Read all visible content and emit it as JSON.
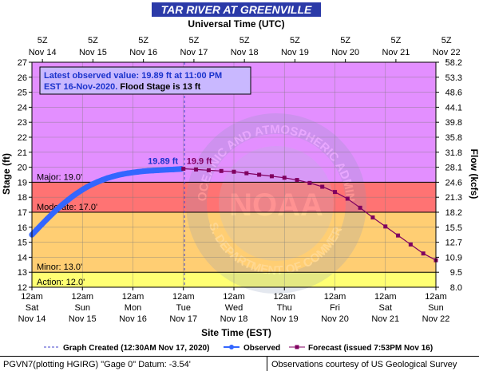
{
  "chart_data": {
    "type": "line",
    "title": "TAR RIVER AT GREENVILLE",
    "top_axis_label": "Universal Time (UTC)",
    "bottom_axis_label": "Site Time (EST)",
    "ylabel_left": "Stage (ft)",
    "ylabel_right": "Flow (kcfs)",
    "ylim": [
      12,
      27
    ],
    "yticks_left": [
      "12",
      "13",
      "14",
      "15",
      "16",
      "17",
      "18",
      "19",
      "20",
      "21",
      "22",
      "23",
      "24",
      "25",
      "26",
      "27"
    ],
    "yticks_right": [
      "8.0",
      "9.5",
      "10.9",
      "12.7",
      "15.5",
      "18.2",
      "21.3",
      "24.6",
      "28.1",
      "31.8",
      "35.8",
      "39.8",
      "44.1",
      "48.6",
      "53.3",
      "58.2"
    ],
    "xlim_days": [
      14,
      22
    ],
    "top_ticks": [
      {
        "t": 14.208,
        "line1": "5Z",
        "line2": "Nov 14"
      },
      {
        "t": 15.208,
        "line1": "5Z",
        "line2": "Nov 15"
      },
      {
        "t": 16.208,
        "line1": "5Z",
        "line2": "Nov 16"
      },
      {
        "t": 17.208,
        "line1": "5Z",
        "line2": "Nov 17"
      },
      {
        "t": 18.208,
        "line1": "5Z",
        "line2": "Nov 18"
      },
      {
        "t": 19.208,
        "line1": "5Z",
        "line2": "Nov 19"
      },
      {
        "t": 20.208,
        "line1": "5Z",
        "line2": "Nov 20"
      },
      {
        "t": 21.208,
        "line1": "5Z",
        "line2": "Nov 21"
      },
      {
        "t": 22.208,
        "line1": "5Z",
        "line2": "Nov 22"
      }
    ],
    "bottom_ticks": [
      {
        "t": 14,
        "line1": "12am",
        "line2": "Sat",
        "line3": "Nov 14"
      },
      {
        "t": 15,
        "line1": "12am",
        "line2": "Sun",
        "line3": "Nov 15"
      },
      {
        "t": 16,
        "line1": "12am",
        "line2": "Mon",
        "line3": "Nov 16"
      },
      {
        "t": 17,
        "line1": "12am",
        "line2": "Tue",
        "line3": "Nov 17"
      },
      {
        "t": 18,
        "line1": "12am",
        "line2": "Wed",
        "line3": "Nov 18"
      },
      {
        "t": 19,
        "line1": "12am",
        "line2": "Thu",
        "line3": "Nov 19"
      },
      {
        "t": 20,
        "line1": "12am",
        "line2": "Fri",
        "line3": "Nov 20"
      },
      {
        "t": 21,
        "line1": "12am",
        "line2": "Sat",
        "line3": "Nov 21"
      },
      {
        "t": 22,
        "line1": "12am",
        "line2": "Sun",
        "line3": "Nov 22"
      }
    ],
    "flood_categories": [
      {
        "name": "Action: 12.0'",
        "from": 12,
        "to": 13,
        "color": "#ffff00"
      },
      {
        "name": "Minor: 13.0'",
        "from": 13,
        "to": 17,
        "color": "#ffa500"
      },
      {
        "name": "Moderate: 17.0'",
        "from": 17,
        "to": 19,
        "color": "#ff0000"
      },
      {
        "name": "Major: 19.0'",
        "from": 19,
        "to": 27,
        "color": "#cc33ff"
      }
    ],
    "graph_created_t": 17.021,
    "series": [
      {
        "name": "Observed",
        "color": "#3366ff",
        "points": [
          [
            14.0,
            15.5
          ],
          [
            14.1,
            15.85
          ],
          [
            14.2,
            16.2
          ],
          [
            14.3,
            16.55
          ],
          [
            14.4,
            16.88
          ],
          [
            14.5,
            17.2
          ],
          [
            14.6,
            17.5
          ],
          [
            14.7,
            17.78
          ],
          [
            14.8,
            18.04
          ],
          [
            14.9,
            18.28
          ],
          [
            15.0,
            18.5
          ],
          [
            15.1,
            18.7
          ],
          [
            15.2,
            18.87
          ],
          [
            15.3,
            19.02
          ],
          [
            15.4,
            19.16
          ],
          [
            15.5,
            19.28
          ],
          [
            15.6,
            19.38
          ],
          [
            15.7,
            19.47
          ],
          [
            15.8,
            19.54
          ],
          [
            15.9,
            19.6
          ],
          [
            16.0,
            19.65
          ],
          [
            16.1,
            19.69
          ],
          [
            16.2,
            19.73
          ],
          [
            16.3,
            19.76
          ],
          [
            16.4,
            19.78
          ],
          [
            16.5,
            19.8
          ],
          [
            16.6,
            19.82
          ],
          [
            16.7,
            19.84
          ],
          [
            16.8,
            19.85
          ],
          [
            16.9,
            19.87
          ],
          [
            16.958,
            19.89
          ]
        ]
      },
      {
        "name": "Forecast (issued 7:53PM Nov 16)",
        "color": "#800060",
        "points": [
          [
            17.0,
            19.9
          ],
          [
            17.25,
            19.85
          ],
          [
            17.5,
            19.8
          ],
          [
            17.75,
            19.75
          ],
          [
            18.0,
            19.7
          ],
          [
            18.25,
            19.6
          ],
          [
            18.5,
            19.5
          ],
          [
            18.75,
            19.4
          ],
          [
            19.0,
            19.3
          ],
          [
            19.25,
            19.15
          ],
          [
            19.5,
            18.95
          ],
          [
            19.75,
            18.7
          ],
          [
            20.0,
            18.35
          ],
          [
            20.25,
            17.9
          ],
          [
            20.5,
            17.3
          ],
          [
            20.75,
            16.65
          ],
          [
            21.0,
            16.05
          ],
          [
            21.25,
            15.45
          ],
          [
            21.5,
            14.85
          ],
          [
            21.75,
            14.25
          ],
          [
            22.0,
            13.8
          ]
        ]
      }
    ],
    "observed_label": "19.89 ft",
    "forecast_peak_label": "19.9 ft",
    "info_box": {
      "line1": "Latest observed value: 19.89 ft at 11:00 PM",
      "line2_blue": "EST 16-Nov-2020.",
      "line2_black": " Flood Stage is 13 ft"
    },
    "watermark": {
      "outer_text": "NATIONAL OCEANIC AND ATMOSPHERIC ADMINISTRATION",
      "inner_text": "NOAA",
      "bottom_text": "U.S. DEPARTMENT OF COMMERCE"
    },
    "legend": {
      "graph_created": "Graph Created (12:30AM Nov 17, 2020)",
      "observed": "Observed",
      "forecast": "Forecast (issued 7:53PM Nov 16)"
    },
    "footer_left": "PGVN7(plotting HGIRG) \"Gage 0\" Datum: -3.54'",
    "footer_right": "Observations courtesy of US Geological Survey"
  }
}
